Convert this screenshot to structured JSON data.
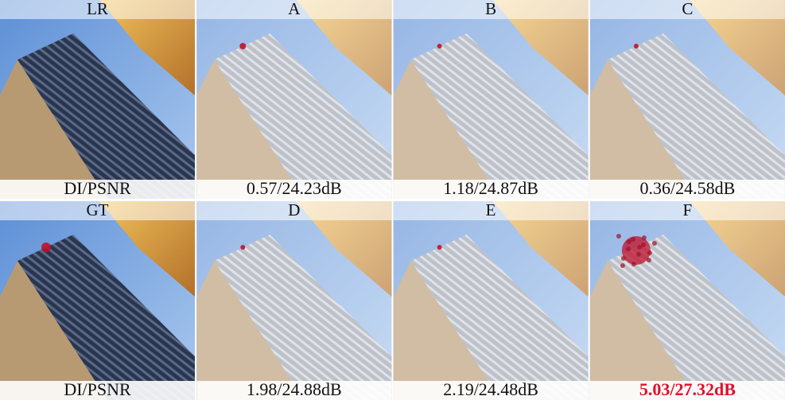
{
  "panels": [
    {
      "title": "LR",
      "caption": "DI/PSNR"
    },
    {
      "title": "A",
      "caption": "0.57/24.23dB"
    },
    {
      "title": "B",
      "caption": "1.18/24.87dB"
    },
    {
      "title": "C",
      "caption": "0.36/24.58dB"
    },
    {
      "title": "GT",
      "caption": "DI/PSNR"
    },
    {
      "title": "D",
      "caption": "1.98/24.88dB"
    },
    {
      "title": "E",
      "caption": "2.19/24.48dB"
    },
    {
      "title": "F",
      "caption": "5.03/27.32dB"
    }
  ]
}
